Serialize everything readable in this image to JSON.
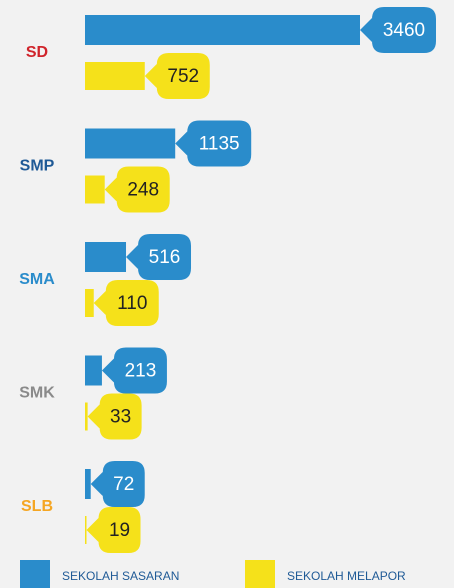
{
  "chart_data": {
    "type": "bar",
    "orientation": "horizontal",
    "categories": [
      "SD",
      "SMP",
      "SMA",
      "SMK",
      "SLB"
    ],
    "category_colors": [
      "#d0242b",
      "#1f5a96",
      "#2a8ccb",
      "#8a8a8a",
      "#f5a623"
    ],
    "series": [
      {
        "name": "SEKOLAH SASARAN",
        "color": "#2a8ccb",
        "values": [
          3460,
          1135,
          516,
          213,
          72
        ]
      },
      {
        "name": "SEKOLAH MELAPOR",
        "color": "#f5e11a",
        "values": [
          752,
          248,
          110,
          33,
          19
        ]
      }
    ]
  }
}
